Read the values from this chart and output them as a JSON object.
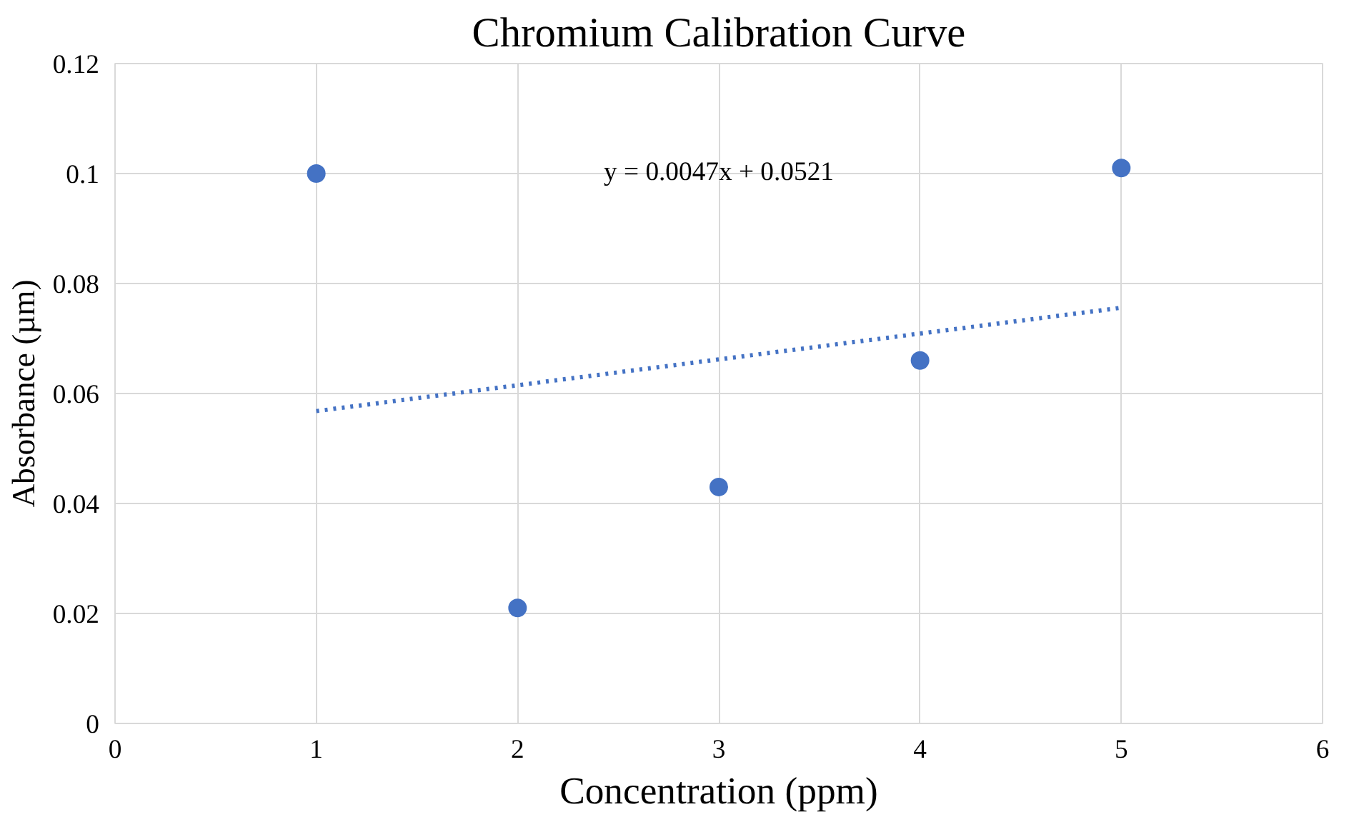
{
  "chart_data": {
    "type": "scatter",
    "title": "Chromium Calibration Curve",
    "xlabel": "Concentration (ppm)",
    "ylabel": "Absorbance (µm)",
    "x": [
      1,
      2,
      3,
      4,
      5
    ],
    "series": [
      {
        "color": "#4472c4",
        "values": [
          0.1,
          0.021,
          0.043,
          0.066,
          0.101
        ],
        "marker": "circle"
      },
      {
        "type": "line",
        "color": "#4472c4",
        "x": [
          1,
          5
        ],
        "values": [
          0.0568,
          0.0756
        ],
        "line_style": "dotted",
        "marker": "none"
      }
    ],
    "xlim": [
      0,
      6
    ],
    "xticks": [
      0,
      1,
      2,
      3,
      4,
      5,
      6
    ],
    "ylim": [
      0,
      0.12
    ],
    "yticks": [
      0,
      0.02,
      0.04,
      0.06,
      0.08,
      {
        "value": 0.1,
        "label": "0.1"
      },
      0.12
    ],
    "grid": true,
    "annotations": [
      "y = 0.0047x + 0.0521"
    ]
  }
}
